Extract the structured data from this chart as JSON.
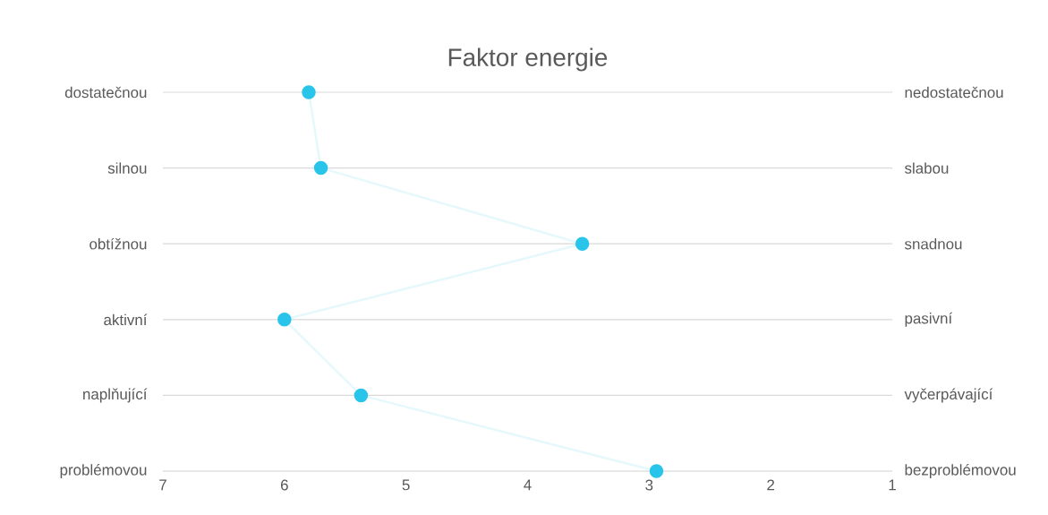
{
  "chart_data": {
    "type": "line",
    "title": "Faktor energie",
    "orientation": "horizontal",
    "categories": [
      "dostatečnou",
      "silnou",
      "obtížnou",
      "aktivní",
      "naplňující",
      "problémovou"
    ],
    "y2_categories": [
      "nedostatečnou",
      "slabou",
      "snadnou",
      "pasivní",
      "vyčerpávající",
      "bezproblémovou"
    ],
    "series": [
      {
        "color": "#29c4ea",
        "values": [
          5.8,
          5.7,
          3.55,
          6.0,
          5.37,
          2.94
        ]
      }
    ],
    "xlim": [
      7,
      1
    ],
    "xticks": [
      7,
      6,
      5,
      4,
      3,
      2,
      1
    ],
    "grid": "y",
    "marker": "circle",
    "line_style": "solid"
  }
}
